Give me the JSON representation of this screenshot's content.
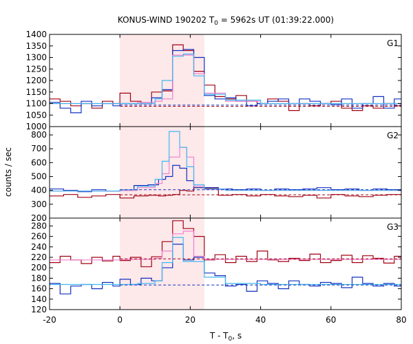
{
  "chart_data": {
    "type": "line",
    "title": {
      "prefix": "KONUS-WIND 190202 T",
      "sub": "0",
      "suffix": " = 5962s UT (01:39:22.000)"
    },
    "xlabel": {
      "prefix": "T - T",
      "sub": "0",
      "suffix": ", s"
    },
    "ylabel": "counts / sec",
    "xlim": [
      -20,
      80
    ],
    "x_ticks": [
      -20,
      0,
      20,
      40,
      60,
      80
    ],
    "highlight": {
      "x_start": 0,
      "x_end": 24,
      "color": "#fde8ea"
    },
    "colors": {
      "dark_red": "#a00010",
      "pink": "#f080d0",
      "blue": "#1030c0",
      "cyan": "#40b8f0"
    },
    "panels": [
      {
        "label": "G1",
        "ylim": [
          1000,
          1400
        ],
        "y_ticks": [
          1000,
          1050,
          1100,
          1150,
          1200,
          1250,
          1300,
          1350,
          1400
        ],
        "series": [
          {
            "color": "dark_red",
            "style": "step",
            "x": [
              -20,
              -17,
              -14,
              -11,
              -8,
              -5,
              -2,
              0,
              3,
              6,
              9,
              12,
              15,
              18,
              21,
              24,
              27,
              30,
              33,
              36,
              39,
              42,
              45,
              48,
              51,
              54,
              57,
              60,
              63,
              66,
              69,
              72,
              75,
              78,
              80
            ],
            "values": [
              1120,
              1110,
              1090,
              1100,
              1080,
              1110,
              1100,
              1145,
              1110,
              1100,
              1150,
              1155,
              1355,
              1330,
              1240,
              1180,
              1130,
              1120,
              1135,
              1110,
              1100,
              1120,
              1110,
              1070,
              1100,
              1090,
              1100,
              1110,
              1080,
              1070,
              1090,
              1080,
              1100,
              1090,
              1090
            ]
          },
          {
            "color": "blue",
            "style": "step",
            "x": [
              -20,
              -17,
              -14,
              -11,
              -8,
              -5,
              -2,
              0,
              3,
              6,
              9,
              12,
              15,
              18,
              21,
              24,
              27,
              30,
              33,
              36,
              39,
              42,
              45,
              48,
              51,
              54,
              57,
              60,
              63,
              66,
              69,
              72,
              75,
              78,
              80
            ],
            "values": [
              1105,
              1080,
              1060,
              1110,
              1090,
              1100,
              1090,
              1100,
              1100,
              1100,
              1125,
              1160,
              1330,
              1335,
              1300,
              1135,
              1120,
              1125,
              1110,
              1090,
              1100,
              1110,
              1120,
              1100,
              1120,
              1110,
              1100,
              1095,
              1120,
              1080,
              1100,
              1130,
              1080,
              1120,
              1120
            ]
          },
          {
            "color": "pink",
            "style": "step",
            "x": [
              -20,
              -10,
              0,
              5,
              10,
              12,
              15,
              18,
              21,
              24,
              30,
              40,
              50,
              60,
              70,
              80
            ],
            "values": [
              1100,
              1100,
              1100,
              1105,
              1110,
              1120,
              1310,
              1310,
              1230,
              1145,
              1110,
              1100,
              1100,
              1100,
              1100,
              1100
            ]
          },
          {
            "color": "cyan",
            "style": "step",
            "x": [
              -20,
              -10,
              0,
              5,
              10,
              12,
              15,
              18,
              21,
              24,
              30,
              40,
              50,
              60,
              70,
              80
            ],
            "values": [
              1100,
              1100,
              1100,
              1100,
              1120,
              1200,
              1305,
              1315,
              1220,
              1140,
              1115,
              1100,
              1100,
              1100,
              1100,
              1100
            ]
          },
          {
            "color": "blue",
            "style": "dashed",
            "x": [
              0,
              80
            ],
            "values": [
              1093,
              1093
            ]
          },
          {
            "color": "dark_red",
            "style": "dashed",
            "x": [
              0,
              80
            ],
            "values": [
              1088,
              1088
            ]
          }
        ]
      },
      {
        "label": "G2",
        "ylim": [
          200,
          860
        ],
        "y_ticks": [
          200,
          300,
          400,
          500,
          600,
          700,
          800
        ],
        "series": [
          {
            "color": "dark_red",
            "style": "step",
            "x": [
              -20,
              -16,
              -12,
              -8,
              -4,
              0,
              4,
              8,
              11,
              13,
              15,
              17,
              19,
              21,
              24,
              28,
              32,
              36,
              40,
              44,
              48,
              52,
              56,
              60,
              64,
              68,
              72,
              76,
              80
            ],
            "values": [
              360,
              370,
              350,
              360,
              370,
              345,
              360,
              365,
              360,
              365,
              370,
              400,
              395,
              420,
              415,
              365,
              370,
              360,
              370,
              360,
              355,
              365,
              345,
              370,
              360,
              355,
              365,
              370,
              370
            ]
          },
          {
            "color": "blue",
            "style": "step",
            "x": [
              -20,
              -16,
              -12,
              -8,
              -4,
              0,
              4,
              8,
              11,
              13,
              15,
              17,
              19,
              21,
              24,
              28,
              32,
              36,
              40,
              44,
              48,
              52,
              56,
              60,
              64,
              68,
              72,
              76,
              80
            ],
            "values": [
              410,
              400,
              390,
              405,
              395,
              400,
              435,
              440,
              480,
              500,
              580,
              560,
              470,
              420,
              420,
              410,
              405,
              410,
              400,
              410,
              405,
              410,
              420,
              405,
              410,
              400,
              410,
              405,
              405
            ]
          },
          {
            "color": "pink",
            "style": "step",
            "x": [
              -20,
              0,
              5,
              10,
              12,
              14,
              17,
              19,
              21,
              24,
              30,
              40,
              80
            ],
            "values": [
              395,
              400,
              420,
              450,
              520,
              640,
              710,
              640,
              430,
              405,
              400,
              400,
              400
            ]
          },
          {
            "color": "cyan",
            "style": "step",
            "x": [
              -20,
              0,
              5,
              10,
              12,
              14,
              17,
              19,
              21,
              24,
              30,
              40,
              80
            ],
            "values": [
              395,
              405,
              430,
              480,
              610,
              825,
              710,
              570,
              440,
              410,
              400,
              400,
              400
            ]
          },
          {
            "color": "blue",
            "style": "dashed",
            "x": [
              0,
              80
            ],
            "values": [
              405,
              405
            ]
          },
          {
            "color": "dark_red",
            "style": "dashed",
            "x": [
              0,
              80
            ],
            "values": [
              368,
              368
            ]
          }
        ]
      },
      {
        "label": "G3",
        "ylim": [
          120,
          295
        ],
        "y_ticks": [
          120,
          140,
          160,
          180,
          200,
          220,
          240,
          260,
          280
        ],
        "series": [
          {
            "color": "dark_red",
            "style": "step",
            "x": [
              -20,
              -17,
              -14,
              -11,
              -8,
              -5,
              -2,
              0,
              3,
              6,
              9,
              12,
              15,
              18,
              21,
              24,
              27,
              30,
              33,
              36,
              39,
              42,
              45,
              48,
              51,
              54,
              57,
              60,
              63,
              66,
              69,
              72,
              75,
              78,
              80
            ],
            "values": [
              210,
              222,
              215,
              208,
              220,
              213,
              222,
              214,
              220,
              202,
              221,
              250,
              290,
              275,
              260,
              215,
              225,
              210,
              222,
              212,
              232,
              215,
              212,
              218,
              214,
              226,
              210,
              214,
              224,
              210,
              223,
              218,
              209,
              222,
              222
            ]
          },
          {
            "color": "blue",
            "style": "step",
            "x": [
              -20,
              -17,
              -14,
              -11,
              -8,
              -5,
              -2,
              0,
              3,
              6,
              9,
              12,
              15,
              18,
              21,
              24,
              27,
              30,
              33,
              36,
              39,
              42,
              45,
              48,
              51,
              54,
              57,
              60,
              63,
              66,
              69,
              72,
              75,
              78,
              80
            ],
            "values": [
              170,
              150,
              165,
              168,
              160,
              172,
              165,
              178,
              168,
              180,
              175,
              200,
              245,
              215,
              220,
              190,
              185,
              165,
              168,
              155,
              175,
              170,
              160,
              175,
              168,
              165,
              172,
              170,
              162,
              182,
              170,
              165,
              170,
              165,
              165
            ]
          },
          {
            "color": "pink",
            "style": "step",
            "x": [
              -20,
              0,
              5,
              10,
              12,
              15,
              18,
              21,
              24,
              30,
              40,
              80
            ],
            "values": [
              215,
              216,
              216,
              218,
              232,
              265,
              270,
              222,
              216,
              216,
              216,
              216
            ]
          },
          {
            "color": "cyan",
            "style": "step",
            "x": [
              -20,
              0,
              5,
              10,
              12,
              15,
              18,
              21,
              24,
              30,
              40,
              80
            ],
            "values": [
              168,
              168,
              170,
              175,
              210,
              258,
              212,
              212,
              182,
              170,
              168,
              168
            ]
          },
          {
            "color": "blue",
            "style": "dashed",
            "x": [
              0,
              80
            ],
            "values": [
              167,
              167
            ]
          },
          {
            "color": "dark_red",
            "style": "dashed",
            "x": [
              0,
              80
            ],
            "values": [
              217,
              217
            ]
          }
        ]
      }
    ]
  }
}
